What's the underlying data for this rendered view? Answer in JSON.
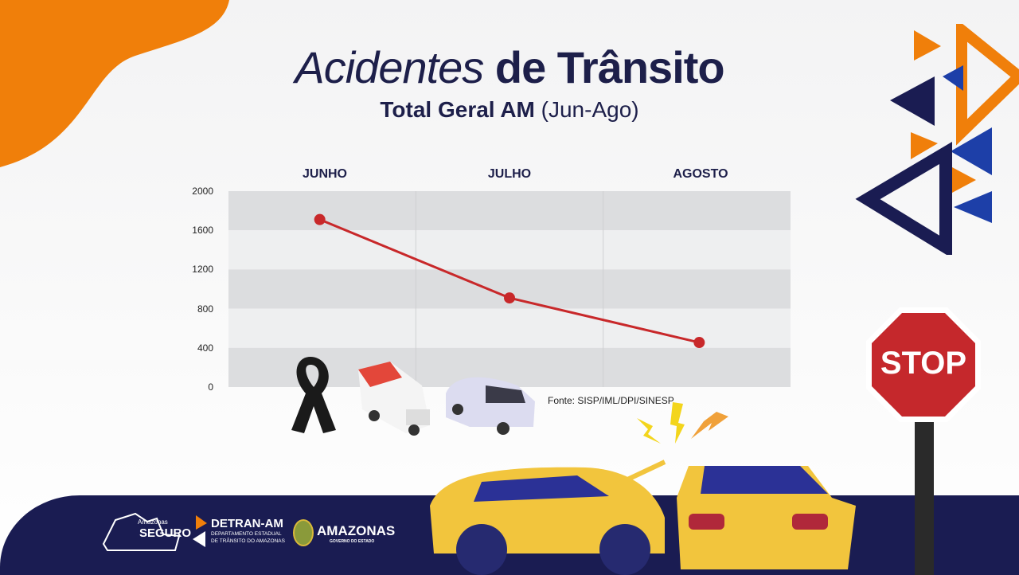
{
  "title": {
    "italic": "Acidentes",
    "bold": "de Trânsito"
  },
  "subtitle": {
    "bold": "Total Geral AM",
    "light": "(Jun-Ago)"
  },
  "source": "Fonte: SISP/IML/DPI/SINESP",
  "stop_sign": "STOP",
  "footer": {
    "logo1": {
      "small": "Amazonas",
      "big": "SEGURO"
    },
    "logo2": {
      "big": "DETRAN-AM",
      "line1": "DEPARTAMENTO ESTADUAL",
      "line2": "DE TRÂNSITO DO AMAZONAS"
    },
    "logo3": {
      "big": "AMAZONAS",
      "small": "GOVERNO DO ESTADO"
    }
  },
  "colors": {
    "line": "#c8282a",
    "orange": "#f07f0a",
    "navy": "#1a1c52",
    "blue": "#1d3fa8"
  },
  "chart_data": {
    "type": "line",
    "categories": [
      "JUNHO",
      "JULHO",
      "AGOSTO"
    ],
    "values": [
      1710,
      910,
      455
    ],
    "yticks": [
      "2000",
      "1600",
      "1200",
      "800",
      "400",
      "0"
    ],
    "ylim": [
      0,
      2000
    ],
    "grid": true,
    "xaxis_position": "top"
  }
}
